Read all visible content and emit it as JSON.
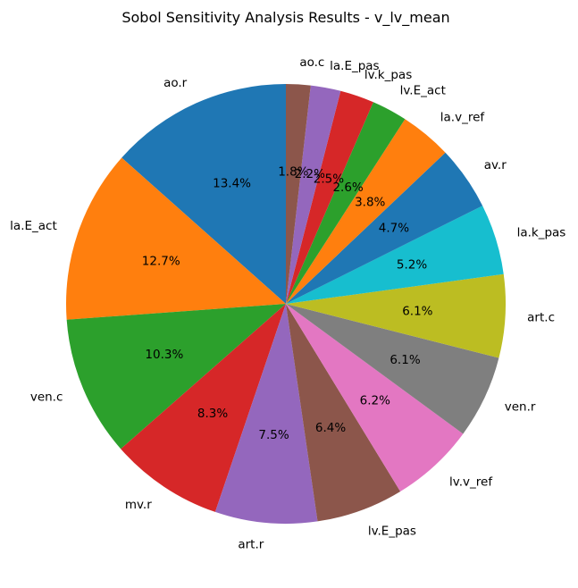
{
  "chart_data": {
    "type": "pie",
    "title": "Sobol Sensitivity Analysis Results - v_lv_mean",
    "start_angle_deg": 90,
    "direction": "counterclockwise",
    "slices": [
      {
        "label": "ao.r",
        "value": 13.4,
        "pct_text": "13.4%",
        "color": "#1f77b4"
      },
      {
        "label": "la.E_act",
        "value": 12.7,
        "pct_text": "12.7%",
        "color": "#ff7f0e"
      },
      {
        "label": "ven.c",
        "value": 10.3,
        "pct_text": "10.3%",
        "color": "#2ca02c"
      },
      {
        "label": "mv.r",
        "value": 8.3,
        "pct_text": "8.3%",
        "color": "#d62728"
      },
      {
        "label": "art.r",
        "value": 7.5,
        "pct_text": "7.5%",
        "color": "#9467bd"
      },
      {
        "label": "lv.E_pas",
        "value": 6.4,
        "pct_text": "6.4%",
        "color": "#8c564b"
      },
      {
        "label": "lv.v_ref",
        "value": 6.2,
        "pct_text": "6.2%",
        "color": "#e377c2"
      },
      {
        "label": "ven.r",
        "value": 6.1,
        "pct_text": "6.1%",
        "color": "#7f7f7f"
      },
      {
        "label": "art.c",
        "value": 6.1,
        "pct_text": "6.1%",
        "color": "#bcbd22"
      },
      {
        "label": "la.k_pas",
        "value": 5.2,
        "pct_text": "5.2%",
        "color": "#17becf"
      },
      {
        "label": "av.r",
        "value": 4.7,
        "pct_text": "4.7%",
        "color": "#1f77b4"
      },
      {
        "label": "la.v_ref",
        "value": 3.8,
        "pct_text": "3.8%",
        "color": "#ff7f0e"
      },
      {
        "label": "lv.E_act",
        "value": 2.6,
        "pct_text": "2.6%",
        "color": "#2ca02c"
      },
      {
        "label": "lv.k_pas",
        "value": 2.5,
        "pct_text": "2.5%",
        "color": "#d62728"
      },
      {
        "label": "la.E_pas",
        "value": 2.2,
        "pct_text": "2.2%",
        "color": "#9467bd"
      },
      {
        "label": "ao.c",
        "value": 1.8,
        "pct_text": "1.8%",
        "color": "#8c564b"
      }
    ]
  }
}
